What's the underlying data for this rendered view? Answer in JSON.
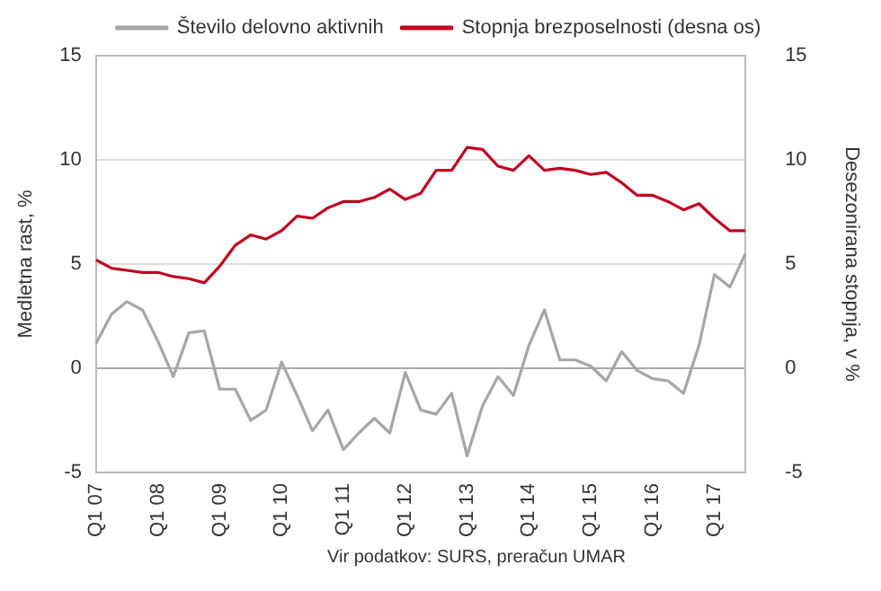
{
  "chart_data": {
    "type": "line",
    "categories": [
      "Q1 07",
      null,
      null,
      null,
      "Q1 08",
      null,
      null,
      null,
      "Q1 09",
      null,
      null,
      null,
      "Q1 10",
      null,
      null,
      null,
      "Q1 11",
      null,
      null,
      null,
      "Q1 12",
      null,
      null,
      null,
      "Q1 13",
      null,
      null,
      null,
      "Q1 14",
      null,
      null,
      null,
      "Q1 15",
      null,
      null,
      null,
      "Q1 16",
      null,
      null,
      null,
      "Q1 17",
      null,
      null
    ],
    "series": [
      {
        "name": "Število delovno aktivnih",
        "color": "#a6a6a6",
        "values": [
          1.2,
          2.6,
          3.2,
          2.8,
          1.3,
          -0.4,
          1.7,
          1.8,
          -1.0,
          -1.0,
          -2.5,
          -2.0,
          0.3,
          -1.3,
          -3.0,
          -2.0,
          -3.9,
          -3.1,
          -2.4,
          -3.1,
          -0.2,
          -2.0,
          -2.2,
          -1.2,
          -4.2,
          -1.8,
          -0.4,
          -1.3,
          1.1,
          2.8,
          0.4,
          0.4,
          0.1,
          -0.6,
          0.8,
          -0.1,
          -0.5,
          -0.6,
          -1.2,
          1.1,
          4.5,
          3.9,
          5.5
        ]
      },
      {
        "name": "Stopnja brezposelnosti (desna os)",
        "color": "#c00020",
        "axis": "y2",
        "values": [
          5.2,
          4.8,
          4.7,
          4.6,
          4.6,
          4.4,
          4.3,
          4.1,
          4.9,
          5.9,
          6.4,
          6.2,
          6.6,
          7.3,
          7.2,
          7.7,
          8.0,
          8.0,
          8.2,
          8.6,
          8.1,
          8.4,
          9.5,
          9.5,
          10.6,
          10.5,
          9.7,
          9.5,
          10.2,
          9.5,
          9.6,
          9.5,
          9.3,
          9.4,
          8.9,
          8.3,
          8.3,
          8.0,
          7.6,
          7.9,
          7.2,
          6.6,
          6.6
        ]
      }
    ],
    "ylabel": "Medletna rast, %",
    "y2label": "Desezonirana stopnja, v %",
    "ylim": [
      -5,
      15
    ],
    "yticks": [
      -5,
      0,
      5,
      10,
      15
    ],
    "y2lim": [
      -5,
      15
    ],
    "y2ticks": [
      -5,
      0,
      5,
      10,
      15
    ],
    "grid": "y",
    "legend": "top",
    "marker": "none",
    "line_style": "solid",
    "annotations": [
      "Vir podatkov:  SURS, preračun  UMAR"
    ]
  }
}
